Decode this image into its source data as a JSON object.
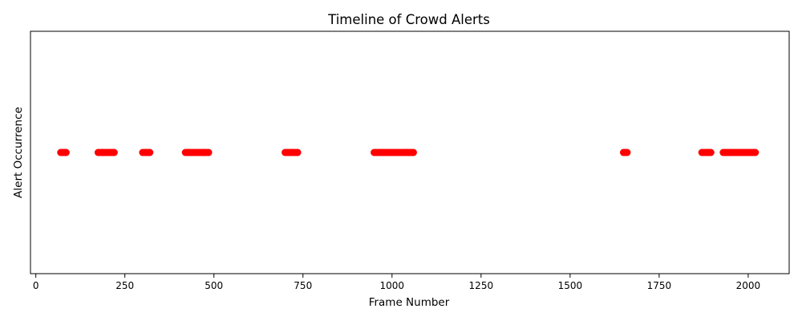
{
  "chart_data": {
    "type": "scatter",
    "title": "Timeline of Crowd Alerts",
    "xlabel": "Frame Number",
    "ylabel": "Alert Occurrence",
    "xlim": [
      -15,
      2115
    ],
    "ylim": [
      0,
      2
    ],
    "xticks": [
      0,
      250,
      500,
      750,
      1000,
      1250,
      1500,
      1750,
      2000
    ],
    "xtick_labels": [
      "0",
      "250",
      "500",
      "750",
      "1000",
      "1250",
      "1500",
      "1750",
      "2000"
    ],
    "yticks": [],
    "grid": false,
    "marker_color": "#ff0000",
    "series": [
      {
        "x": [
          70,
          75,
          80,
          85,
          175,
          180,
          185,
          190,
          195,
          200,
          205,
          210,
          215,
          220,
          300,
          305,
          310,
          315,
          320,
          420,
          425,
          430,
          435,
          440,
          445,
          450,
          455,
          460,
          465,
          470,
          475,
          480,
          485,
          700,
          705,
          710,
          715,
          720,
          725,
          730,
          735,
          950,
          955,
          960,
          965,
          970,
          975,
          980,
          985,
          990,
          995,
          1000,
          1005,
          1010,
          1015,
          1020,
          1025,
          1030,
          1035,
          1040,
          1045,
          1050,
          1055,
          1060,
          1650,
          1655,
          1660,
          1870,
          1875,
          1880,
          1885,
          1890,
          1895,
          1930,
          1935,
          1940,
          1945,
          1950,
          1955,
          1960,
          1965,
          1970,
          1975,
          1980,
          1985,
          1990,
          1995,
          2000,
          2005,
          2010,
          2015,
          2020
        ],
        "y": 1
      }
    ]
  }
}
